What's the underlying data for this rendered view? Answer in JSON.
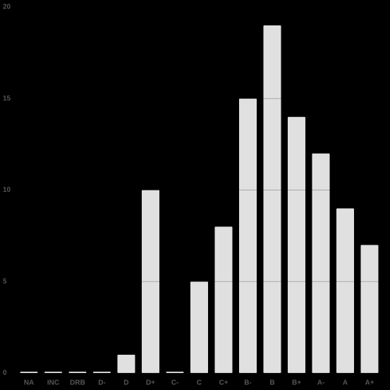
{
  "chart_data": {
    "type": "bar",
    "categories": [
      "NA",
      "INC",
      "DRB",
      "D-",
      "D",
      "D+",
      "C-",
      "C",
      "C+",
      "B-",
      "B",
      "B+",
      "A-",
      "A",
      "A+"
    ],
    "values": [
      0,
      0,
      0,
      0,
      1,
      10,
      0,
      5,
      8,
      15,
      19,
      14,
      12,
      9,
      7
    ],
    "color": "#e0e0e0",
    "ylim": [
      0,
      20
    ],
    "yticks": [
      0,
      5,
      10,
      15,
      20
    ],
    "grid": true
  }
}
